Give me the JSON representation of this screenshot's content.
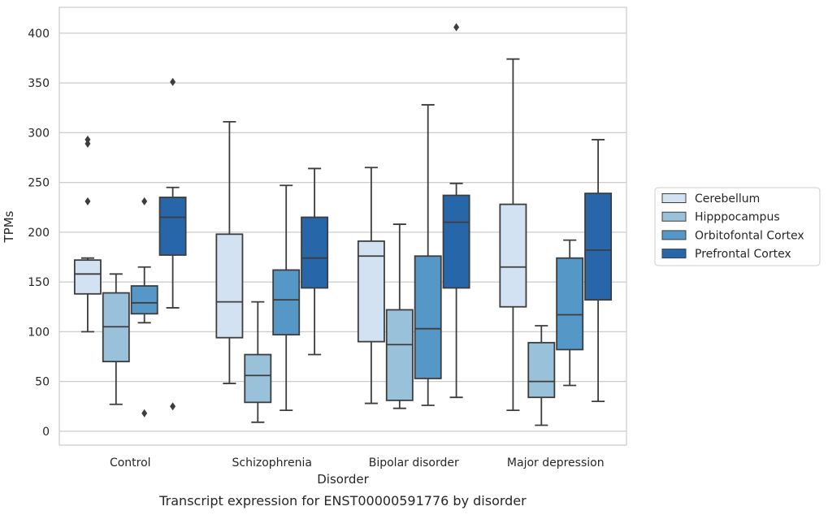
{
  "caption": "Transcript expression for ENST00000591776 by disorder",
  "chart_data": {
    "type": "box",
    "title": "",
    "xlabel": "Disorder",
    "ylabel": "TPMs",
    "ylim": [
      -14,
      426
    ],
    "yticks": [
      0,
      50,
      100,
      150,
      200,
      250,
      300,
      350,
      400
    ],
    "grid": "horizontal",
    "legend_position": "right",
    "categories": [
      "Control",
      "Schizophrenia",
      "Bipolar disorder",
      "Major depression"
    ],
    "series": [
      {
        "name": "Cerebellum",
        "color": "#d3e2f2",
        "boxes": [
          {
            "category": "Control",
            "whisker_low": 100,
            "q1": 138,
            "median": 158,
            "q3": 172,
            "whisker_high": 174,
            "outliers": [
              231,
              289,
              293
            ]
          },
          {
            "category": "Schizophrenia",
            "whisker_low": 48,
            "q1": 94,
            "median": 130,
            "q3": 198,
            "whisker_high": 311,
            "outliers": []
          },
          {
            "category": "Bipolar disorder",
            "whisker_low": 28,
            "q1": 90,
            "median": 176,
            "q3": 191,
            "whisker_high": 265,
            "outliers": []
          },
          {
            "category": "Major depression",
            "whisker_low": 21,
            "q1": 125,
            "median": 165,
            "q3": 228,
            "whisker_high": 374,
            "outliers": []
          }
        ]
      },
      {
        "name": "Hipppocampus",
        "color": "#9ac1da",
        "boxes": [
          {
            "category": "Control",
            "whisker_low": 27,
            "q1": 70,
            "median": 105,
            "q3": 139,
            "whisker_high": 158,
            "outliers": []
          },
          {
            "category": "Schizophrenia",
            "whisker_low": 9,
            "q1": 29,
            "median": 56,
            "q3": 77,
            "whisker_high": 130,
            "outliers": []
          },
          {
            "category": "Bipolar disorder",
            "whisker_low": 23,
            "q1": 31,
            "median": 87,
            "q3": 122,
            "whisker_high": 208,
            "outliers": []
          },
          {
            "category": "Major depression",
            "whisker_low": 6,
            "q1": 34,
            "median": 50,
            "q3": 89,
            "whisker_high": 106,
            "outliers": []
          }
        ]
      },
      {
        "name": "Orbitofontal Cortex",
        "color": "#5597c7",
        "boxes": [
          {
            "category": "Control",
            "whisker_low": 109,
            "q1": 118,
            "median": 129,
            "q3": 146,
            "whisker_high": 165,
            "outliers": [
              18,
              231
            ]
          },
          {
            "category": "Schizophrenia",
            "whisker_low": 21,
            "q1": 97,
            "median": 132,
            "q3": 162,
            "whisker_high": 247,
            "outliers": []
          },
          {
            "category": "Bipolar disorder",
            "whisker_low": 26,
            "q1": 53,
            "median": 103,
            "q3": 176,
            "whisker_high": 328,
            "outliers": []
          },
          {
            "category": "Major depression",
            "whisker_low": 46,
            "q1": 82,
            "median": 117,
            "q3": 174,
            "whisker_high": 192,
            "outliers": []
          }
        ]
      },
      {
        "name": "Prefrontal Cortex",
        "color": "#2866aa",
        "boxes": [
          {
            "category": "Control",
            "whisker_low": 124,
            "q1": 177,
            "median": 215,
            "q3": 235,
            "whisker_high": 245,
            "outliers": [
              25,
              351
            ]
          },
          {
            "category": "Schizophrenia",
            "whisker_low": 77,
            "q1": 144,
            "median": 174,
            "q3": 215,
            "whisker_high": 264,
            "outliers": []
          },
          {
            "category": "Bipolar disorder",
            "whisker_low": 34,
            "q1": 144,
            "median": 210,
            "q3": 237,
            "whisker_high": 249,
            "outliers": [
              406
            ]
          },
          {
            "category": "Major depression",
            "whisker_low": 30,
            "q1": 132,
            "median": 182,
            "q3": 239,
            "whisker_high": 293,
            "outliers": []
          }
        ]
      }
    ]
  }
}
